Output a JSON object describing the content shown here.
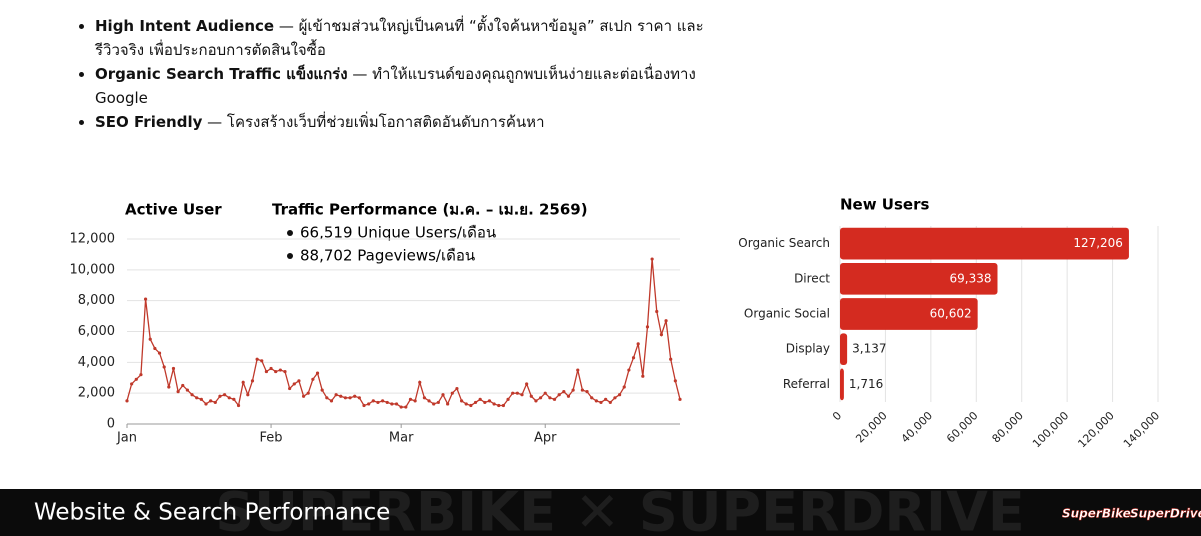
{
  "bullets": [
    {
      "bold": "High Intent Audience",
      "text": "— ผู้เข้าชมส่วนใหญ่เป็นคนที่ “ตั้งใจค้นหาข้อมูล” สเปก ราคา และรีวิวจริง เพื่อประกอบการตัดสินใจซื้อ"
    },
    {
      "bold": "Organic Search Traffic แข็งแกร่ง",
      "text": "— ทำให้แบรนด์ของคุณถูกพบเห็นง่ายและต่อเนื่องทาง Google"
    },
    {
      "bold": "SEO Friendly",
      "text": "— โครงสร้างเว็บที่ช่วยเพิ่มโอกาสติดอันดับการค้นหา"
    }
  ],
  "chart_data": [
    {
      "type": "line",
      "title": "Traffic Performance (ม.ค. – เม.ย. 2569)",
      "y_label": "Active User",
      "annotations": [
        "66,519 Unique Users/เดือน",
        "88,702 Pageviews/เดือน"
      ],
      "color": "#c0392b",
      "grid": true,
      "xlim": [
        0,
        119
      ],
      "xticks": [
        {
          "value": 0,
          "label": "Jan"
        },
        {
          "value": 31,
          "label": "Feb"
        },
        {
          "value": 59,
          "label": "Mar"
        },
        {
          "value": 90,
          "label": "Apr"
        }
      ],
      "ylim": [
        0,
        12000
      ],
      "yticks": [
        0,
        {
          "value": 2000,
          "label": "2,000"
        },
        {
          "value": 4000,
          "label": "4,000"
        },
        {
          "value": 6000,
          "label": "6,000"
        },
        {
          "value": 8000,
          "label": "8,000"
        },
        {
          "value": 10000,
          "label": "10,000"
        },
        {
          "value": 12000,
          "label": "12,000"
        }
      ],
      "x": [
        0,
        1,
        2,
        3,
        4,
        5,
        6,
        7,
        8,
        9,
        10,
        11,
        12,
        13,
        14,
        15,
        16,
        17,
        18,
        19,
        20,
        21,
        22,
        23,
        24,
        25,
        26,
        27,
        28,
        29,
        30,
        31,
        32,
        33,
        34,
        35,
        36,
        37,
        38,
        39,
        40,
        41,
        42,
        43,
        44,
        45,
        46,
        47,
        48,
        49,
        50,
        51,
        52,
        53,
        54,
        55,
        56,
        57,
        58,
        59,
        60,
        61,
        62,
        63,
        64,
        65,
        66,
        67,
        68,
        69,
        70,
        71,
        72,
        73,
        74,
        75,
        76,
        77,
        78,
        79,
        80,
        81,
        82,
        83,
        84,
        85,
        86,
        87,
        88,
        89,
        90,
        91,
        92,
        93,
        94,
        95,
        96,
        97,
        98,
        99,
        100,
        101,
        102,
        103,
        104,
        105,
        106,
        107,
        108,
        109,
        110,
        111,
        112,
        113,
        114,
        115,
        116,
        117,
        118,
        119
      ],
      "values": [
        1500,
        2600,
        2900,
        3200,
        8100,
        5500,
        4900,
        4600,
        3700,
        2400,
        3600,
        2100,
        2500,
        2200,
        1900,
        1700,
        1600,
        1300,
        1500,
        1400,
        1800,
        1900,
        1700,
        1600,
        1200,
        2700,
        1900,
        2800,
        4200,
        4100,
        3400,
        3600,
        3400,
        3500,
        3400,
        2300,
        2600,
        2800,
        1800,
        2000,
        2900,
        3300,
        2200,
        1700,
        1500,
        1900,
        1800,
        1700,
        1700,
        1800,
        1700,
        1200,
        1300,
        1500,
        1400,
        1500,
        1400,
        1300,
        1300,
        1100,
        1100,
        1600,
        1500,
        2700,
        1700,
        1500,
        1300,
        1400,
        1900,
        1300,
        2000,
        2300,
        1500,
        1300,
        1200,
        1400,
        1600,
        1400,
        1500,
        1300,
        1200,
        1200,
        1600,
        2000,
        2000,
        1900,
        2600,
        1800,
        1500,
        1700,
        2000,
        1700,
        1600,
        1900,
        2100,
        1800,
        2200,
        3500,
        2200,
        2100,
        1700,
        1500,
        1400,
        1600,
        1400,
        1700,
        1900,
        2400,
        3500,
        4300,
        5200,
        3100,
        6300,
        10700,
        7300,
        5800,
        6700,
        4200,
        2800,
        1600
      ]
    },
    {
      "type": "hbar",
      "title": "New Users",
      "color": "#d42b20",
      "categories": [
        "Organic Search",
        "Direct",
        "Organic Social",
        "Display",
        "Referral"
      ],
      "values": [
        127206,
        69338,
        60602,
        3137,
        1716
      ],
      "value_labels": [
        "127,206",
        "69,338",
        "60,602",
        "3,137",
        "1,716"
      ],
      "xlim": [
        0,
        140000
      ],
      "xticks": [
        0,
        {
          "value": 20000,
          "label": "20,000"
        },
        {
          "value": 40000,
          "label": "40,000"
        },
        {
          "value": 60000,
          "label": "60,000"
        },
        {
          "value": 80000,
          "label": "80,000"
        },
        {
          "value": 100000,
          "label": "100,000"
        },
        {
          "value": 120000,
          "label": "120,000"
        },
        {
          "value": 140000,
          "label": "140,000"
        }
      ],
      "grid": true
    }
  ],
  "footer": {
    "title": "Website & Search Performance",
    "logos": [
      "SuperBike",
      "SuperDrive"
    ]
  }
}
